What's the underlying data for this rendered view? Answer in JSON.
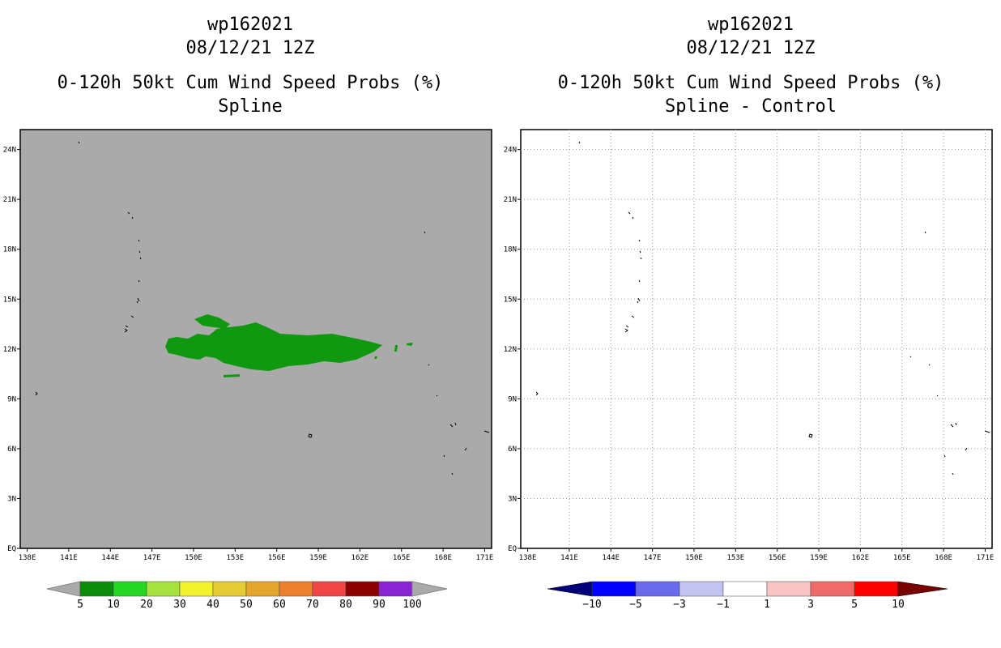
{
  "colors": {
    "land_background": "#aaaaaa",
    "probability_fill": "#119811",
    "map_border": "#000000"
  },
  "left_panel": {
    "storm_id": "wp162021",
    "datetime": "08/12/21 12Z",
    "product": "0-120h 50kt Cum Wind Speed Probs (%)",
    "subtitle": "Spline",
    "colorbar": {
      "labels": [
        "5",
        "10",
        "20",
        "30",
        "40",
        "50",
        "60",
        "70",
        "80",
        "90",
        "100"
      ],
      "colors": [
        "#0b8d0b",
        "#23d723",
        "#a6e23e",
        "#f2f22c",
        "#e6cc34",
        "#e6a62c",
        "#ee7f2c",
        "#f04646",
        "#8c0000",
        "#8c22d6"
      ]
    }
  },
  "right_panel": {
    "storm_id": "wp162021",
    "datetime": "08/12/21 12Z",
    "product": "0-120h 50kt Cum Wind Speed Probs (%)",
    "subtitle": "Spline - Control",
    "colorbar": {
      "labels": [
        "-10",
        "-5",
        "-3",
        "-1",
        "1",
        "3",
        "5",
        "10"
      ],
      "colors": [
        "#0000ff",
        "#6a6aee",
        "#c4c4f2",
        "#ffffff",
        "#f8c4c4",
        "#f06a6a",
        "#ff0000"
      ],
      "end_low": "#00007a",
      "end_high": "#7a0000"
    }
  },
  "map": {
    "lon_labels": [
      "138E",
      "141E",
      "144E",
      "147E",
      "150E",
      "153E",
      "156E",
      "159E",
      "162E",
      "165E",
      "168E",
      "171E"
    ],
    "lat_labels": [
      "EQ",
      "3N",
      "6N",
      "9N",
      "12N",
      "15N",
      "18N",
      "21N",
      "24N"
    ],
    "lon_range": [
      137.5,
      171.5
    ],
    "lat_range": [
      0,
      25.2
    ]
  }
}
